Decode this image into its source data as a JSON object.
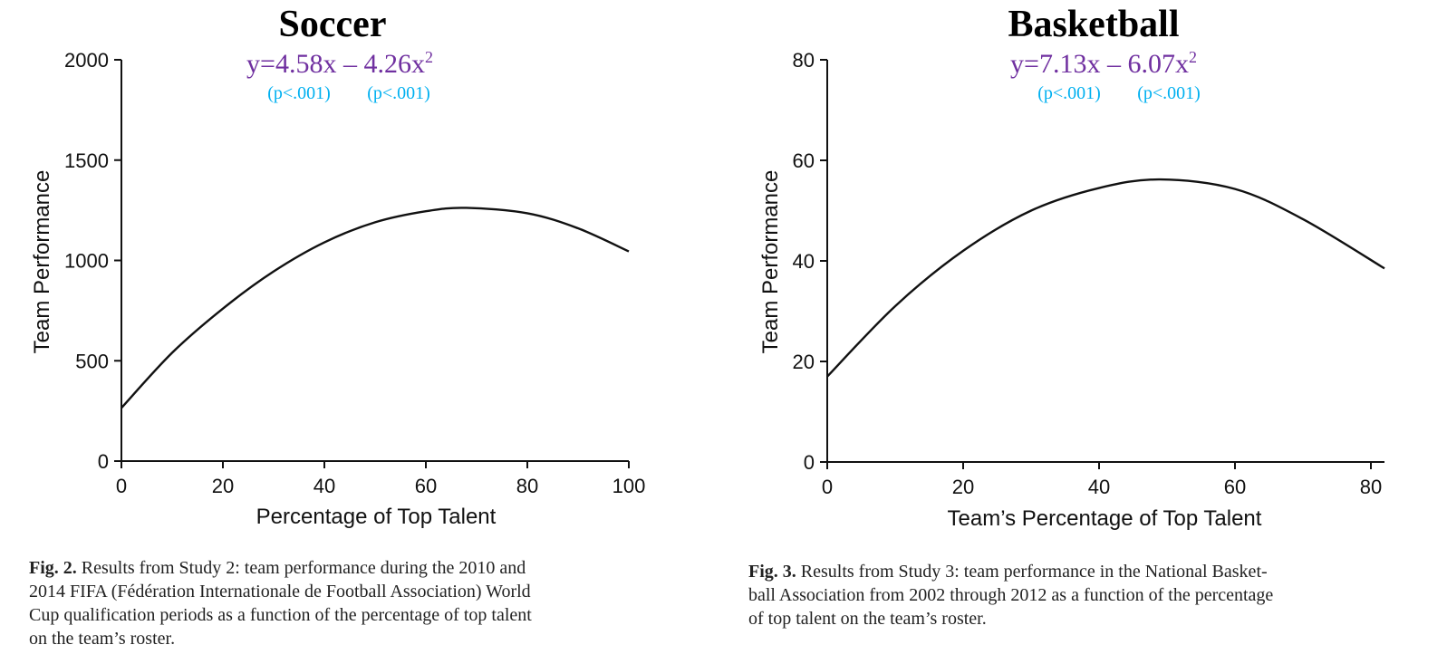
{
  "chart_data": [
    {
      "type": "line",
      "title": "Soccer",
      "equation": {
        "prefix": "y=4.58x – 4.26x",
        "exponent": "2",
        "p_linear": "(p<.001)",
        "p_quadratic": "(p<.001)"
      },
      "xlabel": "Percentage of Top Talent",
      "ylabel": "Team Performance",
      "xlim": [
        0,
        100
      ],
      "ylim": [
        0,
        2000
      ],
      "xticks": [
        0,
        20,
        40,
        60,
        80,
        100
      ],
      "yticks": [
        0,
        500,
        1000,
        1500,
        2000
      ],
      "grid": false,
      "series": [
        {
          "x": [
            0,
            10,
            20,
            30,
            40,
            50,
            60,
            68,
            80,
            90,
            100
          ],
          "y": [
            265,
            540,
            760,
            945,
            1090,
            1190,
            1245,
            1262,
            1235,
            1160,
            1045
          ]
        }
      ]
    },
    {
      "type": "line",
      "title": "Basketball",
      "equation": {
        "prefix": "y=7.13x – 6.07x",
        "exponent": "2",
        "p_linear": "(p<.001)",
        "p_quadratic": "(p<.001)"
      },
      "xlabel": "Team’s Percentage of Top Talent",
      "ylabel": "Team Performance",
      "xlim": [
        0,
        82
      ],
      "ylim": [
        0,
        80
      ],
      "xticks": [
        0,
        20,
        40,
        60,
        80
      ],
      "yticks": [
        0,
        20,
        40,
        60,
        80
      ],
      "grid": false,
      "series": [
        {
          "x": [
            0,
            10,
            20,
            30,
            40,
            49,
            60,
            70,
            82
          ],
          "y": [
            17,
            31,
            42,
            50,
            54.5,
            56.2,
            54.3,
            48.3,
            38.5
          ]
        }
      ]
    }
  ],
  "captions": [
    {
      "label": "Fig. 2.",
      "line1": "Results from Study 2: team performance during the 2010 and",
      "line2": "2014 FIFA (Fédération Internationale de Football Association) World",
      "line3": "Cup qualification periods as a function of the percentage of top talent",
      "line4": "on the team’s roster."
    },
    {
      "label": "Fig. 3.",
      "line1": "Results from Study 3: team performance in the National Basket-",
      "line2": "ball Association from 2002 through 2012 as a function of the percentage",
      "line3": "of top talent on the team’s roster."
    }
  ]
}
